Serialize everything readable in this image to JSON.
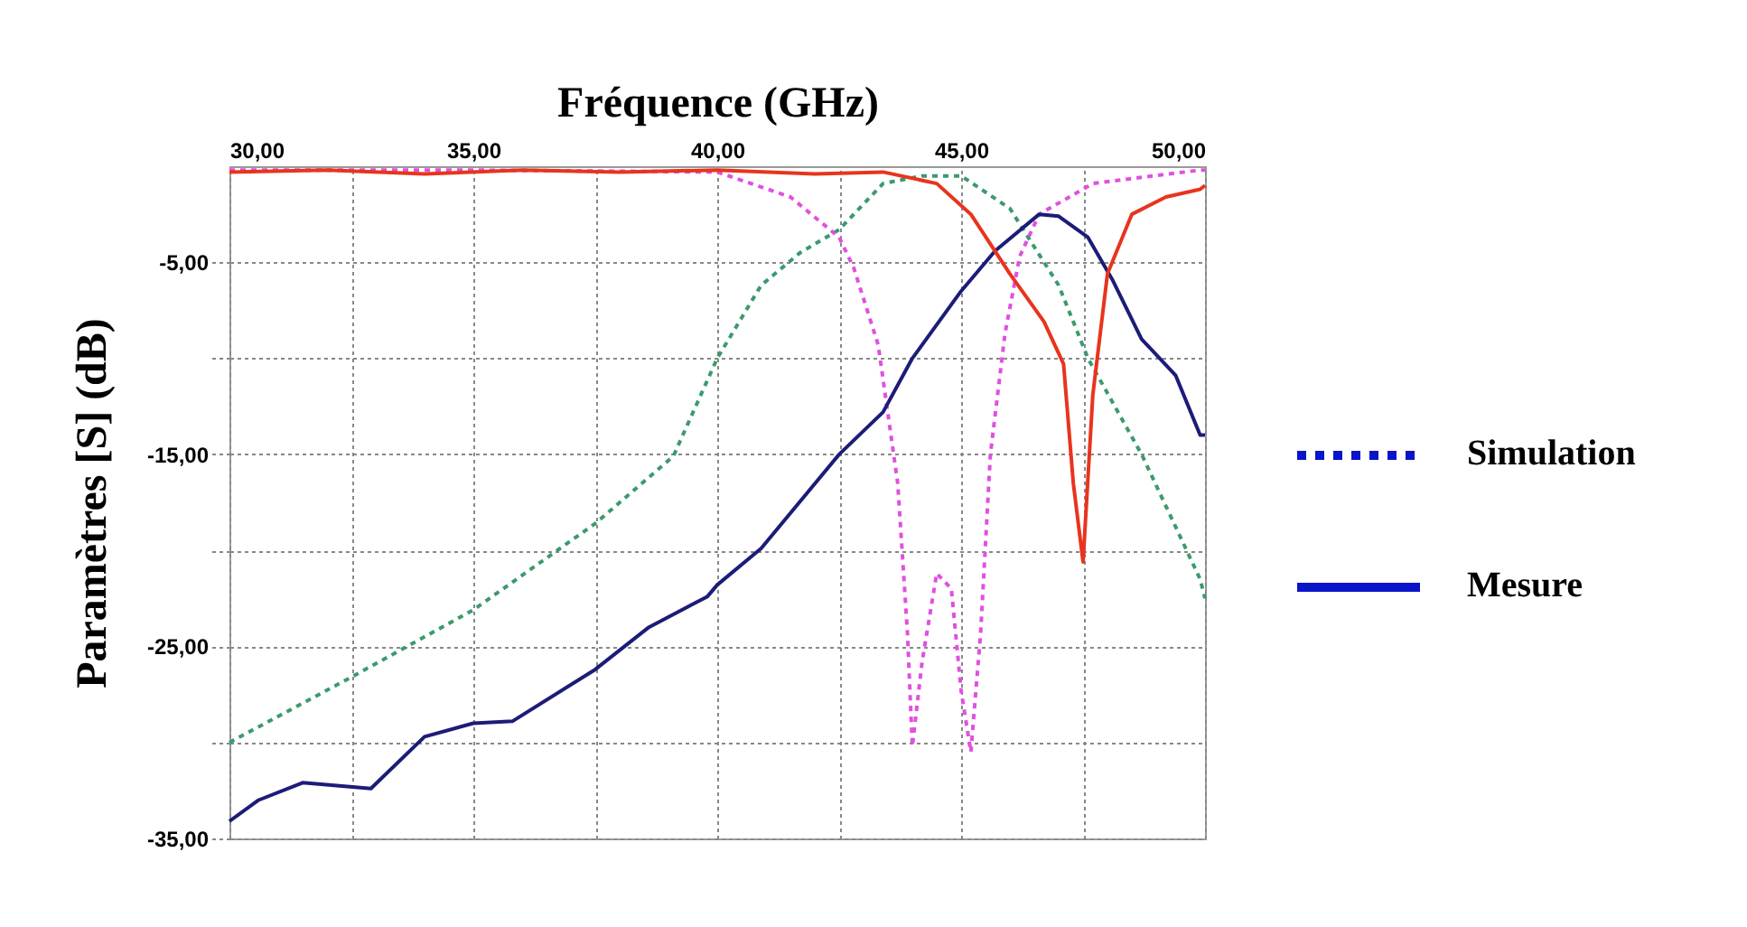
{
  "chart_data": {
    "type": "line",
    "xlabel": "Fréquence (GHz)",
    "ylabel": "Paramètres [S] (dB)",
    "xlim": [
      30,
      50
    ],
    "ylim": [
      -35,
      0
    ],
    "xticks": [
      {
        "value": 30,
        "label": "30,00"
      },
      {
        "value": 32.5,
        "label": null
      },
      {
        "value": 35,
        "label": "35,00"
      },
      {
        "value": 37.5,
        "label": null
      },
      {
        "value": 40,
        "label": "40,00"
      },
      {
        "value": 42.5,
        "label": null
      },
      {
        "value": 45,
        "label": "45,00"
      },
      {
        "value": 47.5,
        "label": null
      },
      {
        "value": 50,
        "label": "50,00"
      }
    ],
    "yticks": [
      {
        "value": -5,
        "label": "-5,00"
      },
      {
        "value": -10,
        "label": null
      },
      {
        "value": -15,
        "label": "-15,00"
      },
      {
        "value": -20,
        "label": null
      },
      {
        "value": -25,
        "label": "-25,00"
      },
      {
        "value": -30,
        "label": null
      },
      {
        "value": -35,
        "label": "-35,00"
      }
    ],
    "grid": true,
    "marker": "none",
    "annotations": [
      "Simulation",
      "Mesure"
    ],
    "series": [
      {
        "color": "#3c9a6c",
        "line_style": "dotted",
        "x": [
          30,
          32.5,
          35,
          37.5,
          39.1,
          40,
          40.9,
          41.7,
          42.5,
          43.4,
          44.2,
          45,
          46,
          47,
          47.6,
          48.7,
          49.9,
          50
        ],
        "values": [
          -30,
          -26.6,
          -23.1,
          -18.6,
          -15.1,
          -10,
          -6.2,
          -4.5,
          -3.3,
          -0.9,
          -0.5,
          -0.5,
          -2.2,
          -6.2,
          -10,
          -15,
          -21.5,
          -22.5
        ]
      },
      {
        "color": "#e050e0",
        "line_style": "dotted",
        "x": [
          30,
          35,
          40,
          41.5,
          42.5,
          42.8,
          43.3,
          43.7,
          43.9,
          44,
          44.2,
          44.5,
          44.8,
          45,
          45.2,
          45.4,
          45.6,
          45.9,
          46.2,
          46.6,
          47.7,
          49.9,
          50
        ],
        "values": [
          -0.2,
          -0.2,
          -0.3,
          -1.6,
          -3.7,
          -5.3,
          -9.3,
          -16.5,
          -24.3,
          -30.2,
          -25.8,
          -21.2,
          -22,
          -27.3,
          -30.5,
          -24.3,
          -15,
          -8.7,
          -4.7,
          -2.5,
          -0.9,
          -0.2,
          -0.2
        ]
      },
      {
        "color": "#1c1c78",
        "line_style": "solid",
        "x": [
          30,
          30.6,
          31.5,
          32.9,
          34,
          35,
          35.8,
          37.5,
          38.6,
          39.8,
          40,
          40.9,
          42.5,
          43.4,
          44,
          45,
          45.7,
          46.6,
          47,
          47.6,
          48.1,
          48.7,
          49.4,
          49.9,
          50
        ],
        "values": [
          -34.1,
          -33,
          -32.1,
          -32.4,
          -29.7,
          -29,
          -28.9,
          -26.2,
          -24,
          -22.4,
          -21.8,
          -19.9,
          -15,
          -12.8,
          -10,
          -6.5,
          -4.4,
          -2.5,
          -2.6,
          -3.7,
          -5.9,
          -9,
          -10.9,
          -14,
          -14
        ]
      },
      {
        "color": "#e8341e",
        "line_style": "solid",
        "x": [
          30,
          32,
          34,
          36,
          38,
          40,
          42,
          43.4,
          44.5,
          45.2,
          46,
          46.7,
          47.1,
          47.3,
          47.5,
          47.7,
          48,
          48.5,
          49.2,
          49.9,
          50
        ],
        "values": [
          -0.3,
          -0.2,
          -0.4,
          -0.2,
          -0.3,
          -0.2,
          -0.4,
          -0.3,
          -0.9,
          -2.5,
          -5.6,
          -8.1,
          -10.3,
          -16.5,
          -20.6,
          -11.9,
          -5.6,
          -2.5,
          -1.6,
          -1.2,
          -1
        ]
      }
    ]
  }
}
